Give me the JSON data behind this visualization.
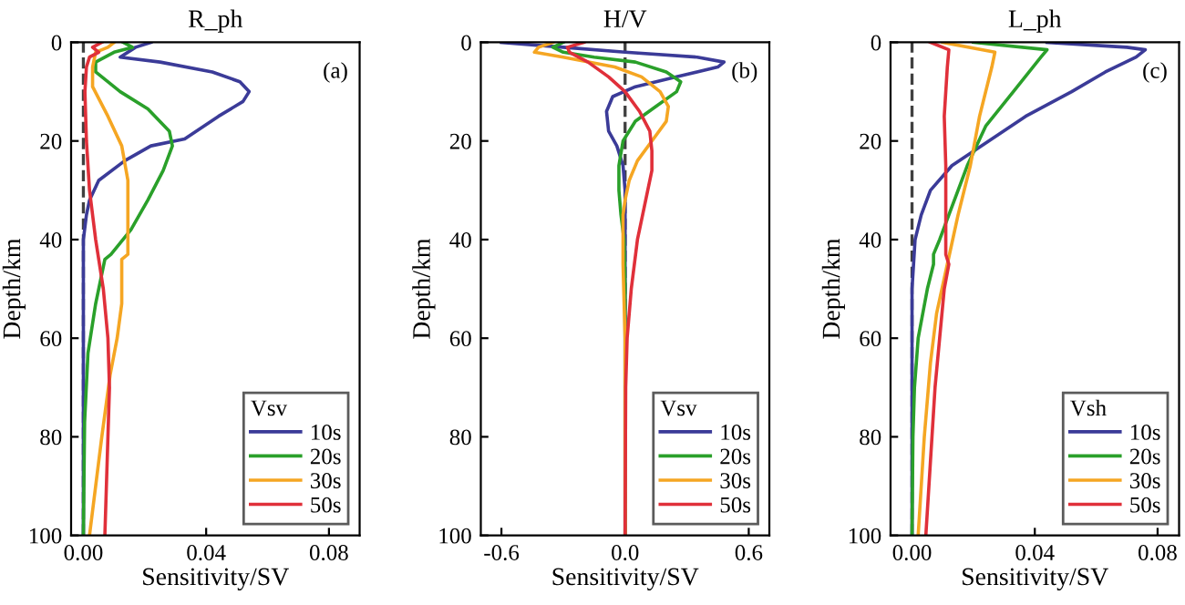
{
  "chart_data": [
    {
      "type": "line",
      "title": "R_ph",
      "xlabel": "Sensitivity/SV",
      "ylabel": "Depth/km",
      "annotations": [
        "(a)"
      ],
      "legend_title": "Vsv",
      "legend": "lower right",
      "grid": false,
      "xlim": [
        -0.004,
        0.09
      ],
      "xticks": [
        {
          "value": 0,
          "label": "0.00"
        },
        {
          "value": 0.04,
          "label": "0.04"
        },
        {
          "value": 0.08,
          "label": "0.08"
        }
      ],
      "ylim": [
        100,
        0
      ],
      "yticks": [
        0,
        20,
        40,
        60,
        80,
        100
      ],
      "ref_lines": [
        {
          "axis": "x",
          "value": 0,
          "color": "#404040",
          "line_style": "dashed"
        }
      ],
      "series": [
        {
          "name": "10s",
          "color": "#3b3b98",
          "x": [
            0.022,
            0.017,
            0.012,
            0.025,
            0.042,
            0.051,
            0.054,
            0.052,
            0.044,
            0.033,
            0.022,
            0.0135,
            0.005,
            0.002,
            0.001,
            0.0,
            0.0,
            0.0
          ],
          "values": [
            0,
            1,
            3,
            4,
            6,
            8,
            10,
            12,
            15,
            19.6,
            21,
            24,
            28,
            32,
            35,
            40,
            60,
            100
          ]
        },
        {
          "name": "20s",
          "color": "#2aa02a",
          "x": [
            0.013,
            0.016,
            0.01,
            0.004,
            0.004,
            0.012,
            0.021,
            0.028,
            0.029,
            0.026,
            0.021,
            0.0155,
            0.009,
            0.007,
            0.004,
            0.0015,
            0.0004,
            0.0
          ],
          "values": [
            0,
            1,
            2,
            4,
            6,
            10,
            13.5,
            18,
            21,
            26,
            32,
            38,
            43,
            44,
            53,
            63,
            77,
            100
          ]
        },
        {
          "name": "30s",
          "color": "#f5a623",
          "x": [
            0.01,
            0.008,
            0.004,
            0.003,
            0.003,
            0.008,
            0.0125,
            0.0145,
            0.0145,
            0.0145,
            0.0125,
            0.0125,
            0.011,
            0.0087,
            0.006,
            0.004,
            0.002
          ],
          "values": [
            0,
            1,
            2,
            5,
            9,
            15,
            21,
            28,
            38,
            43,
            44,
            53,
            60,
            67.5,
            80,
            90,
            100
          ]
        },
        {
          "name": "50s",
          "color": "#e0303a",
          "x": [
            0.006,
            0.003,
            0.005,
            0.002,
            0.001,
            0.0005,
            0.001,
            0.002,
            0.004,
            0.0065,
            0.008,
            0.0085,
            0.008,
            0.0075,
            0.007
          ],
          "values": [
            0,
            1,
            2,
            3,
            5,
            10,
            20,
            30,
            40,
            50,
            60,
            70,
            80,
            90,
            100
          ]
        }
      ]
    },
    {
      "type": "line",
      "title": "H/V",
      "xlabel": "Sensitivity/SV",
      "ylabel": "Depth/km",
      "annotations": [
        "(b)"
      ],
      "legend_title": "Vsv",
      "legend": "lower right",
      "grid": false,
      "xlim": [
        -0.7,
        0.7
      ],
      "xticks": [
        -0.6,
        {
          "value": 0,
          "label": "0.0"
        },
        0.6
      ],
      "ylim": [
        100,
        0
      ],
      "yticks": [
        0,
        20,
        40,
        60,
        80,
        100
      ],
      "ref_lines": [
        {
          "axis": "x",
          "value": 0,
          "color": "#404040",
          "line_style": "dashed"
        }
      ],
      "series": [
        {
          "name": "10s",
          "color": "#3b3b98",
          "x": [
            -0.6,
            -0.3,
            0.0,
            0.35,
            0.48,
            0.45,
            0.25,
            0.05,
            -0.06,
            -0.09,
            -0.08,
            -0.04,
            -0.01,
            0.0,
            0.0
          ],
          "values": [
            0,
            1,
            2,
            3,
            4,
            5,
            7,
            9,
            11,
            14,
            18,
            21,
            25,
            30,
            100
          ]
        },
        {
          "name": "20s",
          "color": "#2aa02a",
          "x": [
            -0.3,
            -0.35,
            -0.3,
            -0.15,
            0.05,
            0.2,
            0.27,
            0.25,
            0.15,
            0.05,
            -0.01,
            -0.03,
            -0.03,
            -0.02,
            -0.005,
            0.0,
            0.0
          ],
          "values": [
            0,
            1,
            2,
            3,
            4,
            6,
            8,
            10,
            13,
            16,
            20,
            25,
            30,
            35,
            40,
            50,
            100
          ]
        },
        {
          "name": "30s",
          "color": "#f5a623",
          "x": [
            -0.35,
            -0.42,
            -0.44,
            -0.3,
            -0.05,
            0.08,
            0.17,
            0.21,
            0.2,
            0.13,
            0.06,
            0.02,
            0.0,
            -0.01,
            -0.01,
            0.0,
            0.0
          ],
          "values": [
            0,
            1,
            2,
            3,
            5,
            7,
            10,
            13,
            16,
            20,
            24,
            28,
            32,
            35,
            45,
            60,
            100
          ]
        },
        {
          "name": "50s",
          "color": "#e0303a",
          "x": [
            -0.2,
            -0.28,
            -0.27,
            -0.18,
            -0.08,
            0.0,
            0.07,
            0.12,
            0.13,
            0.13,
            0.1,
            0.06,
            0.03,
            0.01,
            0.003,
            0.0
          ],
          "values": [
            0,
            1,
            2,
            4,
            7,
            10,
            14,
            18,
            22,
            26,
            32,
            40,
            50,
            60,
            70,
            100
          ]
        }
      ]
    },
    {
      "type": "line",
      "title": "L_ph",
      "xlabel": "Sensitivity/SV",
      "ylabel": "Depth/km",
      "annotations": [
        "(c)"
      ],
      "legend_title": "Vsh",
      "legend": "lower right",
      "grid": false,
      "xlim": [
        -0.007,
        0.087
      ],
      "xticks": [
        {
          "value": 0,
          "label": "0.00"
        },
        {
          "value": 0.04,
          "label": "0.04"
        },
        {
          "value": 0.08,
          "label": "0.08"
        }
      ],
      "ylim": [
        100,
        0
      ],
      "yticks": [
        0,
        20,
        40,
        60,
        80,
        100
      ],
      "ref_lines": [
        {
          "axis": "x",
          "value": 0,
          "color": "#404040",
          "line_style": "dashed"
        }
      ],
      "series": [
        {
          "name": "10s",
          "color": "#3b3b98",
          "x": [
            0.044,
            0.07,
            0.076,
            0.073,
            0.063,
            0.052,
            0.037,
            0.025,
            0.013,
            0.006,
            0.003,
            0.001,
            0.0,
            0.0
          ],
          "values": [
            0,
            1,
            1.5,
            3,
            6,
            10,
            15,
            20,
            25,
            30,
            35,
            40,
            50,
            100
          ]
        },
        {
          "name": "20s",
          "color": "#2aa02a",
          "x": [
            0.02,
            0.044,
            0.042,
            0.033,
            0.024,
            0.018,
            0.015,
            0.012,
            0.009,
            0.007,
            0.007,
            0.005,
            0.002,
            0.0008,
            0.0003,
            0.0
          ],
          "values": [
            0,
            1.5,
            3,
            10,
            17,
            25,
            30,
            35,
            40,
            43,
            45,
            50,
            60,
            70,
            80,
            100
          ]
        },
        {
          "name": "30s",
          "color": "#f5a623",
          "x": [
            0.01,
            0.027,
            0.026,
            0.022,
            0.019,
            0.015,
            0.0115,
            0.008,
            0.006,
            0.004,
            0.002
          ],
          "values": [
            0,
            2,
            5,
            15,
            25,
            35,
            45,
            55,
            65,
            80,
            100
          ]
        },
        {
          "name": "50s",
          "color": "#e0303a",
          "x": [
            0.006,
            0.012,
            0.0115,
            0.0105,
            0.011,
            0.011,
            0.011,
            0.012,
            0.0105,
            0.009,
            0.0075,
            0.0065,
            0.0045
          ],
          "values": [
            0,
            1.5,
            5,
            15,
            25,
            35,
            43,
            45,
            50,
            60,
            70,
            80,
            100
          ]
        }
      ]
    }
  ]
}
